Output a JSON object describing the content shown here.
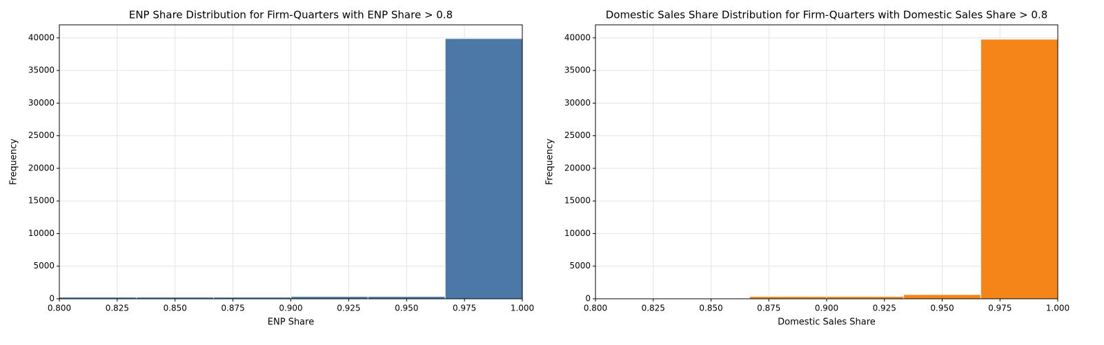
{
  "chart_data": [
    {
      "type": "histogram",
      "title": "ENP Share Distribution for Firm-Quarters with ENP Share > 0.8",
      "x_label": "ENP Share",
      "y_label": "Frequency",
      "bins": [
        0.8,
        0.83333,
        0.86667,
        0.9,
        0.93333,
        0.96667,
        1.0
      ],
      "values": [
        250,
        250,
        250,
        350,
        350,
        39900
      ],
      "color": "#4c78a8",
      "xlim": [
        0.8,
        1.0
      ],
      "ylim": [
        0,
        42000
      ],
      "xticks": [
        {
          "value": 0.8,
          "label": "0.800"
        },
        {
          "value": 0.825,
          "label": "0.825"
        },
        {
          "value": 0.85,
          "label": "0.850"
        },
        {
          "value": 0.875,
          "label": "0.875"
        },
        {
          "value": 0.9,
          "label": "0.900"
        },
        {
          "value": 0.925,
          "label": "0.925"
        },
        {
          "value": 0.95,
          "label": "0.950"
        },
        {
          "value": 0.975,
          "label": "0.975"
        },
        {
          "value": 1.0,
          "label": "1.000"
        }
      ],
      "yticks": [
        0,
        5000,
        10000,
        15000,
        20000,
        25000,
        30000,
        35000,
        40000
      ],
      "grid": true
    },
    {
      "type": "histogram",
      "title": "Domestic Sales Share Distribution for Firm-Quarters with Domestic Sales Share > 0.8",
      "x_label": "Domestic Sales Share",
      "y_label": "Frequency",
      "bins": [
        0.8,
        0.83333,
        0.86667,
        0.9,
        0.93333,
        0.96667,
        1.0
      ],
      "values": [
        100,
        80,
        350,
        350,
        650,
        39800
      ],
      "color": "#f58518",
      "xlim": [
        0.8,
        1.0
      ],
      "ylim": [
        0,
        42000
      ],
      "xticks": [
        {
          "value": 0.8,
          "label": "0.800"
        },
        {
          "value": 0.825,
          "label": "0.825"
        },
        {
          "value": 0.85,
          "label": "0.850"
        },
        {
          "value": 0.875,
          "label": "0.875"
        },
        {
          "value": 0.9,
          "label": "0.900"
        },
        {
          "value": 0.925,
          "label": "0.925"
        },
        {
          "value": 0.95,
          "label": "0.950"
        },
        {
          "value": 0.975,
          "label": "0.975"
        },
        {
          "value": 1.0,
          "label": "1.000"
        }
      ],
      "yticks": [
        0,
        5000,
        10000,
        15000,
        20000,
        25000,
        30000,
        35000,
        40000
      ],
      "grid": true
    }
  ]
}
